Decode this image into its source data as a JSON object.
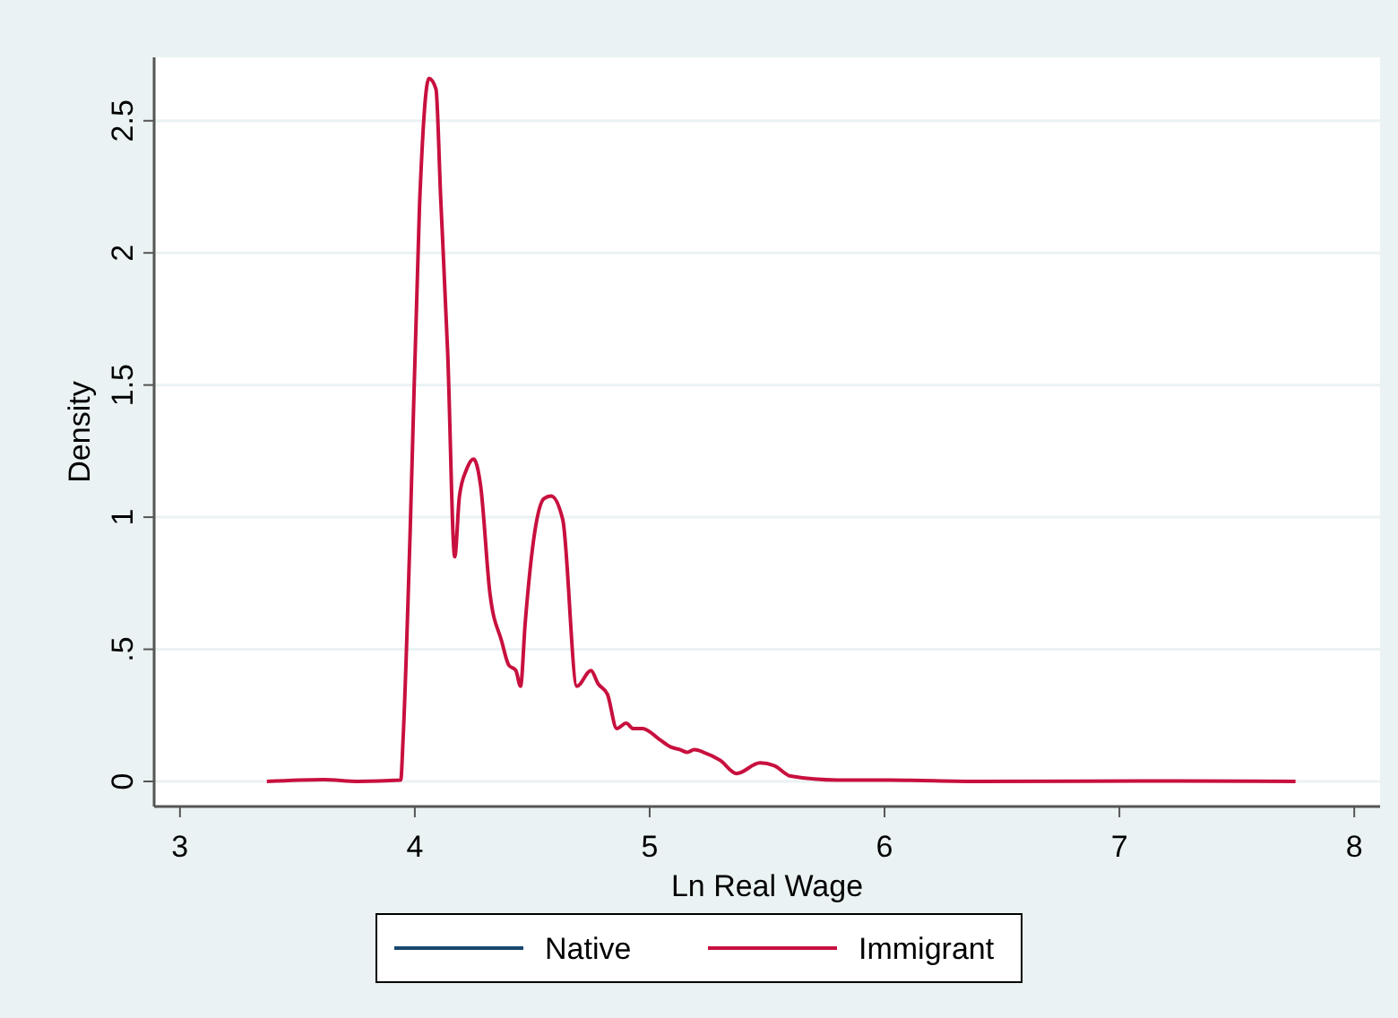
{
  "chart_data": {
    "type": "line",
    "xlabel": "Ln Real Wage",
    "ylabel": "Density",
    "x": [
      3.37,
      3.61,
      3.76,
      3.94,
      3.95,
      3.98,
      4.02,
      4.06,
      4.09,
      4.11,
      4.14,
      4.17,
      4.19,
      4.22,
      4.25,
      4.28,
      4.32,
      4.37,
      4.4,
      4.43,
      4.45,
      4.47,
      4.51,
      4.55,
      4.58,
      4.63,
      4.69,
      4.75,
      4.78,
      4.82,
      4.86,
      4.9,
      4.93,
      4.97,
      5.04,
      5.09,
      5.13,
      5.16,
      5.19,
      5.23,
      5.3,
      5.37,
      5.47,
      5.53,
      5.6,
      5.8,
      6.02,
      6.4,
      7.25,
      7.75
    ],
    "series": [
      {
        "name": "Native",
        "color": "#1a476f",
        "values": [
          null,
          null,
          null,
          null,
          null,
          null,
          null,
          null,
          null,
          null,
          null,
          null,
          null,
          null,
          null,
          null,
          null,
          null,
          null,
          null,
          null,
          null,
          null,
          null,
          null,
          null,
          null,
          null,
          null,
          null,
          null,
          null,
          null,
          null,
          null,
          null,
          null,
          null,
          null,
          null,
          null,
          null,
          null,
          null,
          null,
          null,
          null,
          null,
          null,
          null
        ]
      },
      {
        "name": "Immigrant",
        "color": "#c8103e",
        "values": [
          0,
          0.007,
          0,
          0.005,
          0.16,
          0.94,
          2.18,
          2.66,
          2.62,
          2.21,
          1.62,
          0.85,
          1.08,
          1.18,
          1.22,
          1.12,
          0.71,
          0.53,
          0.44,
          0.42,
          0.36,
          0.6,
          0.94,
          1.07,
          1.08,
          0.99,
          0.36,
          0.42,
          0.37,
          0.33,
          0.2,
          0.22,
          0.2,
          0.2,
          0.16,
          0.13,
          0.12,
          0.11,
          0.12,
          0.11,
          0.08,
          0.03,
          0.07,
          0.06,
          0.02,
          0.005,
          0.005,
          0,
          0.002,
          0
        ]
      }
    ],
    "xlim": [
      2.89,
      8.11
    ],
    "xticks": [
      3,
      4,
      5,
      6,
      7,
      8
    ],
    "ylim": [
      -0.095,
      2.74
    ],
    "yticks": [
      0,
      {
        "value": 0.5,
        "label": ".5"
      },
      1,
      1.5,
      2,
      2.5
    ],
    "grid": "y",
    "legend": "bottom",
    "marker": "none",
    "line_style": "solid"
  }
}
